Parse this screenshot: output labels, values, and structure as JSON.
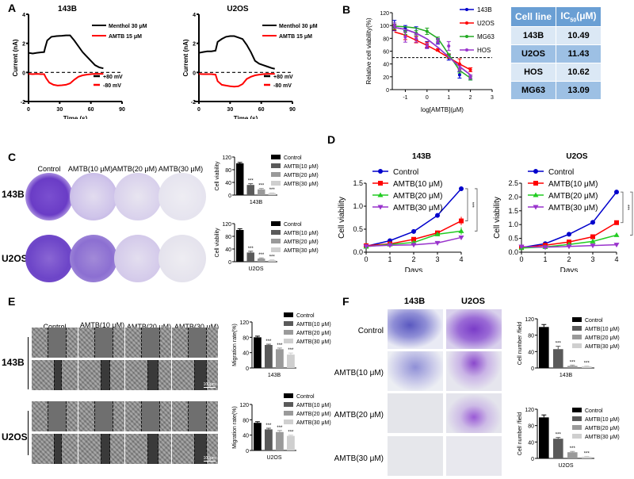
{
  "panels": {
    "A": "A",
    "B": "B",
    "C": "C",
    "D": "D",
    "E": "E",
    "F": "F"
  },
  "colors": {
    "black": "#000000",
    "red": "#ff0000",
    "blue": "#0000cc",
    "green": "#22aa22",
    "purple": "#9933cc",
    "bar_control": "#000000",
    "bar_10": "#5a5a5a",
    "bar_20": "#9a9a9a",
    "bar_30": "#cfcfcf",
    "table_header": "#6a9fd4",
    "table_light": "#dbe8f5",
    "table_dark": "#9dc0e4"
  },
  "table": {
    "headers": [
      "Cell line",
      "IC50(μM)"
    ],
    "header_main": "IC",
    "header_sub": "50",
    "header_unit": "(μM)",
    "rows": [
      {
        "cell": "143B",
        "ic50": "10.49"
      },
      {
        "cell": "U2OS",
        "ic50": "11.43"
      },
      {
        "cell": "HOS",
        "ic50": "10.62"
      },
      {
        "cell": "MG63",
        "ic50": "13.09"
      }
    ]
  },
  "panel_c": {
    "columns": [
      "Control",
      "AMTB(10 μM)",
      "AMTB(20 μM)",
      "AMTB(30 μM)"
    ],
    "rows": [
      "143B",
      "U2OS"
    ]
  },
  "panel_e": {
    "columns": [
      "Control",
      "AMTB(10 μM)",
      "AMTB(20 μM)",
      "AMTB(30 μM)"
    ],
    "rows": [
      "143B",
      "U2OS"
    ],
    "scale_bar": "100μm"
  },
  "panel_f": {
    "columns": [
      "143B",
      "U2OS"
    ],
    "rows": [
      "Control",
      "AMTB(10 μM)",
      "AMTB(20 μM)",
      "AMTB(30 μM)"
    ]
  },
  "chart_data": [
    {
      "id": "A-143B",
      "type": "line",
      "title": "143B",
      "xlabel": "Time (s)",
      "ylabel": "Current (nA)",
      "xlim": [
        0,
        90
      ],
      "ylim": [
        -2,
        4
      ],
      "xticks": [
        0,
        30,
        60,
        90
      ],
      "yticks": [
        -2,
        0,
        2,
        4
      ],
      "legend_top": [
        "Menthol 30 μM",
        "AMTB 15 μM"
      ],
      "legend_bottom": [
        "+80 mV",
        "-80 mV"
      ],
      "series": [
        {
          "name": "+80 mV",
          "color": "#000000",
          "x": [
            0,
            4,
            8,
            12,
            15,
            16,
            18,
            22,
            27,
            32,
            36,
            40,
            44,
            48,
            52,
            56,
            60,
            64,
            68,
            72
          ],
          "y": [
            1.35,
            1.3,
            1.35,
            1.38,
            1.4,
            1.7,
            2.2,
            2.45,
            2.5,
            2.52,
            2.55,
            2.55,
            2.2,
            1.8,
            1.4,
            1.1,
            0.8,
            0.5,
            0.35,
            0.28
          ]
        },
        {
          "name": "-80 mV",
          "color": "#ff0000",
          "x": [
            0,
            4,
            8,
            12,
            15,
            17,
            20,
            24,
            28,
            32,
            36,
            40,
            44,
            48,
            52,
            56,
            60,
            64,
            68,
            72
          ],
          "y": [
            -0.1,
            -0.12,
            -0.1,
            -0.12,
            -0.12,
            -0.4,
            -0.7,
            -0.85,
            -0.9,
            -0.88,
            -0.85,
            -0.75,
            -0.5,
            -0.3,
            -0.2,
            -0.15,
            -0.12,
            -0.1,
            -0.1,
            -0.1
          ]
        }
      ],
      "reference_line": 0
    },
    {
      "id": "A-U2OS",
      "type": "line",
      "title": "U2OS",
      "xlabel": "Time (s)",
      "ylabel": "Current (nA)",
      "xlim": [
        0,
        90
      ],
      "ylim": [
        -2,
        4
      ],
      "xticks": [
        0,
        30,
        60,
        90
      ],
      "yticks": [
        -2,
        0,
        2,
        4
      ],
      "legend_top": [
        "Menthol 30 μM",
        "AMTB 15 μM"
      ],
      "legend_bottom": [
        "+80 mV",
        "-80 mV"
      ],
      "series": [
        {
          "name": "+80 mV",
          "color": "#000000",
          "x": [
            0,
            4,
            8,
            12,
            16,
            18,
            22,
            26,
            30,
            34,
            38,
            42,
            46,
            50,
            54,
            58,
            62,
            66,
            70,
            73
          ],
          "y": [
            1.35,
            1.4,
            1.45,
            1.45,
            1.5,
            2.1,
            2.3,
            2.45,
            2.5,
            2.5,
            2.4,
            2.3,
            1.9,
            1.4,
            0.8,
            0.6,
            0.5,
            0.4,
            0.3,
            0.25
          ]
        },
        {
          "name": "-80 mV",
          "color": "#ff0000",
          "x": [
            0,
            4,
            8,
            12,
            16,
            18,
            22,
            26,
            30,
            34,
            38,
            42,
            46,
            50,
            54,
            58,
            62,
            66,
            70,
            73
          ],
          "y": [
            -0.1,
            -0.12,
            -0.12,
            -0.12,
            -0.15,
            -0.6,
            -0.85,
            -0.9,
            -0.95,
            -0.98,
            -0.95,
            -0.8,
            -0.45,
            -0.3,
            -0.2,
            -0.15,
            -0.12,
            -0.1,
            -0.1,
            -0.1
          ]
        }
      ],
      "reference_line": 0
    },
    {
      "id": "B",
      "type": "scatter",
      "title": "",
      "xlabel": "log[AMTB](μM)",
      "ylabel": "Relative cell viability(%)",
      "xlim": [
        -1.6,
        3
      ],
      "ylim": [
        0,
        120
      ],
      "xticks": [
        -1,
        0,
        1,
        2,
        3
      ],
      "yticks": [
        0,
        20,
        40,
        60,
        80,
        100,
        120
      ],
      "reference_line": 50,
      "x": [
        -1.5,
        -1,
        -0.5,
        0,
        0.5,
        1,
        1.5,
        2
      ],
      "series": [
        {
          "name": "143B",
          "color": "#0000cc",
          "values": [
            100,
            96,
            88,
            70,
            75,
            50,
            23,
            18
          ],
          "err": [
            8,
            4,
            10,
            5,
            4,
            4,
            5,
            3
          ],
          "fit": [
            97,
            94,
            88,
            79,
            66,
            51,
            36,
            23
          ]
        },
        {
          "name": "U2OS",
          "color": "#ff0000",
          "values": [
            97,
            84,
            78,
            70,
            62,
            52,
            40,
            31
          ],
          "err": [
            4,
            6,
            5,
            4,
            2,
            3,
            8,
            3
          ],
          "fit": [
            90,
            85,
            77,
            69,
            60,
            50,
            40,
            31
          ]
        },
        {
          "name": "MG63",
          "color": "#22aa22",
          "values": [
            98,
            90,
            88,
            91,
            78,
            53,
            30,
            18
          ],
          "err": [
            4,
            4,
            4,
            5,
            4,
            3,
            4,
            3
          ],
          "fit": [
            99,
            98,
            96,
            91,
            80,
            55,
            30,
            18
          ]
        },
        {
          "name": "HOS",
          "color": "#9933cc",
          "values": [
            100,
            82,
            80,
            68,
            76,
            68,
            33,
            20
          ],
          "err": [
            4,
            8,
            6,
            4,
            4,
            7,
            4,
            3
          ],
          "fit": [
            97,
            94,
            88,
            79,
            66,
            51,
            36,
            23
          ]
        }
      ]
    },
    {
      "id": "C-143B",
      "type": "bar",
      "title": "",
      "xlabel": "143B",
      "ylabel": "Cell viability",
      "ylim": [
        0,
        120
      ],
      "yticks": [
        0,
        40,
        80,
        120
      ],
      "categories": [
        "Control",
        "AMTB(10 μM)",
        "AMTB(20 μM)",
        "AMTB(30 μM)"
      ],
      "values": [
        100,
        32,
        18,
        6
      ],
      "err": [
        3,
        4,
        3,
        1
      ],
      "annotations": [
        "",
        "***",
        "***",
        "***"
      ]
    },
    {
      "id": "C-U2OS",
      "type": "bar",
      "title": "",
      "xlabel": "U2OS",
      "ylabel": "Cell viability",
      "ylim": [
        0,
        120
      ],
      "yticks": [
        0,
        40,
        80,
        120
      ],
      "categories": [
        "Control",
        "AMTB(10 μM)",
        "AMTB(20 μM)",
        "AMTB(30 μM)"
      ],
      "values": [
        100,
        29,
        10,
        5
      ],
      "err": [
        4,
        4,
        2,
        1
      ],
      "annotations": [
        "",
        "***",
        "***",
        "***"
      ]
    },
    {
      "id": "D-143B",
      "type": "line",
      "title": "143B",
      "xlabel": "Days",
      "ylabel": "Cell viability",
      "xlim": [
        0,
        4
      ],
      "ylim": [
        0,
        1.5
      ],
      "xticks": [
        0,
        1,
        2,
        3,
        4
      ],
      "yticks": [
        "0.0",
        "0.5",
        "1.0",
        "1.5"
      ],
      "x": [
        0,
        1,
        2,
        3,
        4
      ],
      "series": [
        {
          "name": "Control",
          "color": "#0000cc",
          "marker": "circle",
          "values": [
            0.13,
            0.25,
            0.45,
            0.8,
            1.38
          ],
          "err": [
            0.02,
            0.02,
            0.05,
            0.02,
            0.05
          ]
        },
        {
          "name": "AMTB(10 μM)",
          "color": "#ff0000",
          "marker": "square",
          "values": [
            0.14,
            0.18,
            0.28,
            0.42,
            0.68
          ],
          "err": [
            0.01,
            0.02,
            0.02,
            0.04,
            0.09
          ]
        },
        {
          "name": "AMTB(20 μM)",
          "color": "#22cc22",
          "marker": "triangle-up",
          "values": [
            0.12,
            0.17,
            0.21,
            0.39,
            0.46
          ],
          "err": [
            0.01,
            0.01,
            0.02,
            0.02,
            0.08
          ]
        },
        {
          "name": "AMTB(30 μM)",
          "color": "#9933cc",
          "marker": "triangle-down",
          "values": [
            0.13,
            0.15,
            0.16,
            0.2,
            0.32
          ],
          "err": [
            0.01,
            0.01,
            0.01,
            0.02,
            0.02
          ]
        }
      ],
      "significance": [
        "***",
        "***",
        "***"
      ]
    },
    {
      "id": "D-U2OS",
      "type": "line",
      "title": "U2OS",
      "xlabel": "Days",
      "ylabel": "Cell viability",
      "xlim": [
        0,
        4
      ],
      "ylim": [
        0,
        2.5
      ],
      "xticks": [
        0,
        1,
        2,
        3,
        4
      ],
      "yticks": [
        "0.0",
        "0.5",
        "1.0",
        "1.5",
        "2.0",
        "2.5"
      ],
      "x": [
        0,
        1,
        2,
        3,
        4
      ],
      "series": [
        {
          "name": "Control",
          "color": "#0000cc",
          "marker": "circle",
          "values": [
            0.17,
            0.31,
            0.65,
            1.08,
            2.18
          ],
          "err": [
            0.02,
            0.02,
            0.03,
            0.03,
            0.04
          ]
        },
        {
          "name": "AMTB(10 μM)",
          "color": "#ff0000",
          "marker": "square",
          "values": [
            0.17,
            0.25,
            0.37,
            0.56,
            1.07
          ],
          "err": [
            0.01,
            0.02,
            0.03,
            0.04,
            0.04
          ]
        },
        {
          "name": "AMTB(20 μM)",
          "color": "#22cc22",
          "marker": "triangle-up",
          "values": [
            0.15,
            0.19,
            0.28,
            0.39,
            0.62
          ],
          "err": [
            0.01,
            0.01,
            0.02,
            0.02,
            0.03
          ]
        },
        {
          "name": "AMTB(30 μM)",
          "color": "#9933cc",
          "marker": "triangle-down",
          "values": [
            0.2,
            0.18,
            0.21,
            0.24,
            0.27
          ],
          "err": [
            0.02,
            0.01,
            0.01,
            0.02,
            0.02
          ]
        }
      ],
      "significance": [
        "***",
        "***",
        "***"
      ]
    },
    {
      "id": "E-143B",
      "type": "bar",
      "title": "",
      "xlabel": "143B",
      "ylabel": "Migration rate(%)",
      "ylim": [
        0,
        120
      ],
      "yticks": [
        0,
        40,
        80,
        120
      ],
      "categories": [
        "Control",
        "AMTB(10 μM)",
        "AMTB(20 μM)",
        "AMTB(30 μM)"
      ],
      "values": [
        80,
        60,
        49,
        35
      ],
      "err": [
        3,
        2,
        3,
        4
      ],
      "annotations": [
        "",
        "***",
        "***",
        "***"
      ]
    },
    {
      "id": "E-U2OS",
      "type": "bar",
      "title": "",
      "xlabel": "U2OS",
      "ylabel": "Migration rate(%)",
      "ylim": [
        0,
        120
      ],
      "yticks": [
        0,
        40,
        80,
        120
      ],
      "categories": [
        "Control",
        "AMTB(10 μM)",
        "AMTB(20 μM)",
        "AMTB(30 μM)"
      ],
      "values": [
        72,
        55,
        48,
        38
      ],
      "err": [
        3,
        3,
        4,
        2
      ],
      "annotations": [
        "",
        "***",
        "***",
        "***"
      ]
    },
    {
      "id": "F-143B",
      "type": "bar",
      "title": "",
      "xlabel": "143B",
      "ylabel": "Cell number /field",
      "ylim": [
        0,
        120
      ],
      "yticks": [
        0,
        40,
        80,
        120
      ],
      "categories": [
        "Control",
        "AMTB(10 μM)",
        "AMTB(20 μM)",
        "AMTB(30 μM)"
      ],
      "values": [
        100,
        46,
        5,
        4
      ],
      "err": [
        6,
        7,
        2,
        1
      ],
      "annotations": [
        "",
        "***",
        "***",
        "***"
      ]
    },
    {
      "id": "F-U2OS",
      "type": "bar",
      "title": "",
      "xlabel": "U2OS",
      "ylabel": "Cell number /field",
      "ylim": [
        0,
        120
      ],
      "yticks": [
        0,
        40,
        80,
        120
      ],
      "categories": [
        "Control",
        "AMTB(10 μM)",
        "AMTB(20 μM)",
        "AMTB(30 μM)"
      ],
      "values": [
        100,
        48,
        15,
        4
      ],
      "err": [
        6,
        3,
        2,
        1
      ],
      "annotations": [
        "",
        "***",
        "***",
        "***"
      ]
    }
  ]
}
